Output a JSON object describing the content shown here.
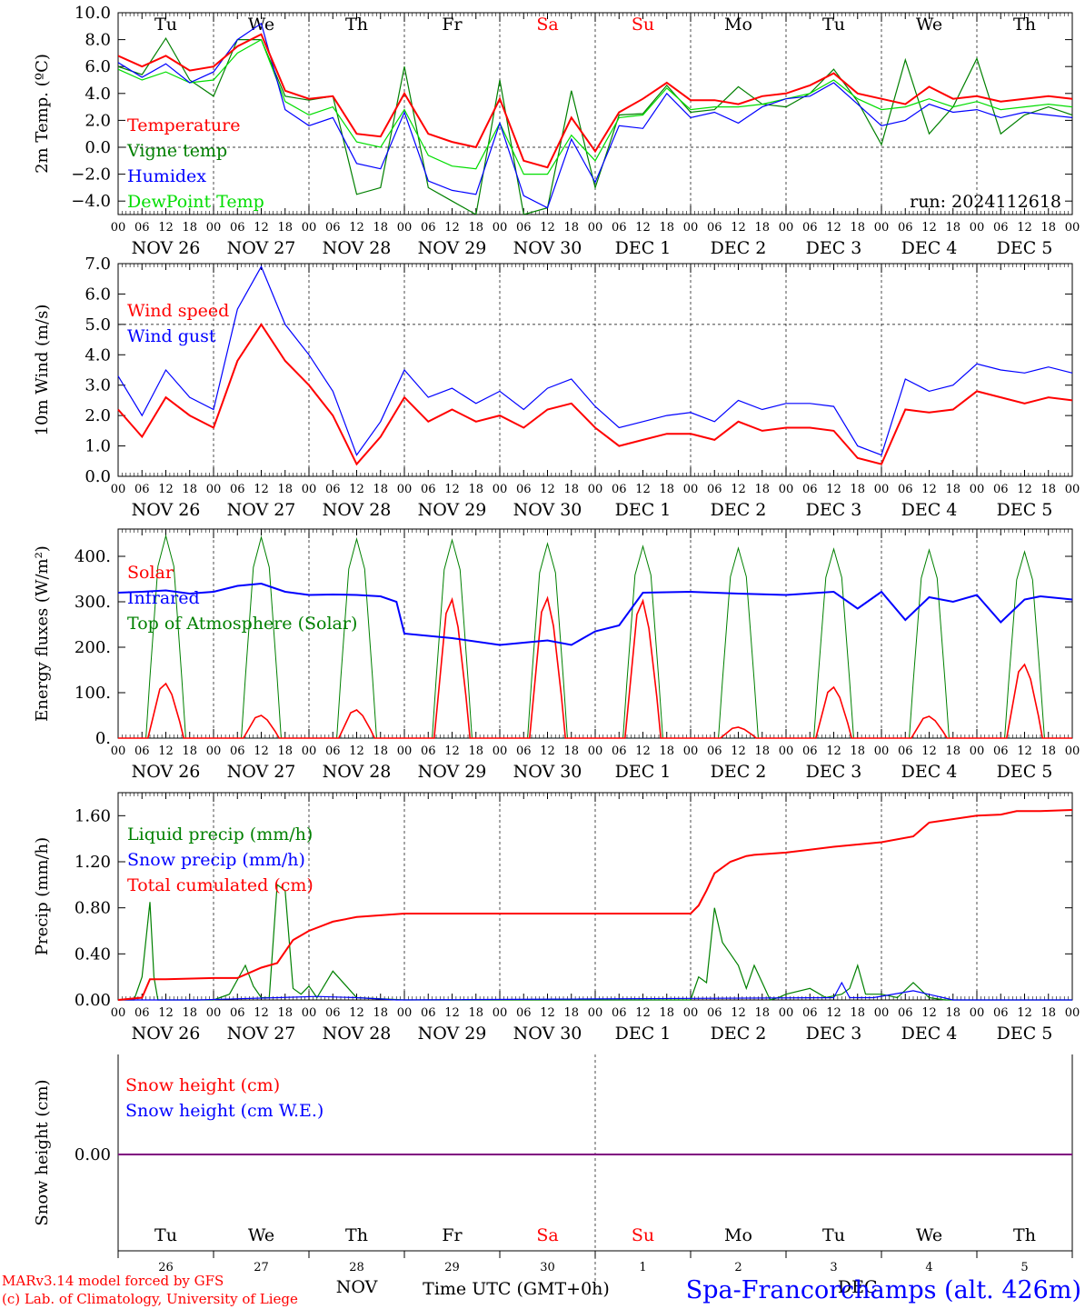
{
  "run_label": "run: 2024112618",
  "days": [
    "Tu",
    "We",
    "Th",
    "Fr",
    "Sa",
    "Su",
    "Mo",
    "Tu",
    "We",
    "Th"
  ],
  "weekend_days": [
    "Sa",
    "Su"
  ],
  "dates": [
    "NOV 26",
    "NOV 27",
    "NOV 28",
    "NOV 29",
    "NOV 30",
    "DEC 1",
    "DEC 2",
    "DEC 3",
    "DEC 4",
    "DEC 5"
  ],
  "day_numbers": [
    "26",
    "27",
    "28",
    "29",
    "30",
    "1",
    "2",
    "3",
    "4",
    "5"
  ],
  "hour_ticks": [
    "00",
    "06",
    "12",
    "18"
  ],
  "month_labels": [
    "NOV",
    "DEC"
  ],
  "footer": {
    "credit1": "MARv3.14 model forced by GFS",
    "credit2": "(c) Lab. of Climatology, University of Liege",
    "xlabel": "Time UTC (GMT+0h)",
    "location": "Spa-Francorchamps (alt. 426m)"
  },
  "colors": {
    "red": "#ff0000",
    "green": "#008000",
    "blue": "#0000ff",
    "lightgreen": "#00dd00",
    "purple": "#800080"
  },
  "chart_data": [
    {
      "type": "line",
      "ylabel": "2m Temp. (ºC)",
      "ylim": [
        -5,
        10
      ],
      "yticks": [
        "10.0",
        "8.0",
        "6.0",
        "4.0",
        "2.0",
        "0.0",
        "−2.0",
        "−4.0"
      ],
      "ytick_values": [
        10,
        8,
        6,
        4,
        2,
        0,
        -2,
        -4
      ],
      "dashed_y": 0,
      "x_hours": [
        0,
        6,
        12,
        18,
        24,
        30,
        36,
        42,
        48,
        54,
        60,
        66,
        72,
        78,
        84,
        90,
        96,
        102,
        108,
        114,
        120,
        126,
        132,
        138,
        144,
        150,
        156,
        162,
        168,
        174,
        180,
        186,
        192,
        198,
        204,
        210,
        216,
        222,
        228,
        234,
        240
      ],
      "series": [
        {
          "name": "Temperature",
          "color": "red",
          "values": [
            6.8,
            6.0,
            6.8,
            5.7,
            6.0,
            7.5,
            8.4,
            4.2,
            3.6,
            3.8,
            1.0,
            0.8,
            4.0,
            1.0,
            0.4,
            0.0,
            3.6,
            -1.0,
            -1.5,
            2.2,
            -0.3,
            2.6,
            3.6,
            4.8,
            3.5,
            3.5,
            3.2,
            3.8,
            4.0,
            4.6,
            5.5,
            4.0,
            3.6,
            3.2,
            4.5,
            3.6,
            3.8,
            3.4,
            3.6,
            3.8,
            3.6
          ]
        },
        {
          "name": "Vigne temp",
          "color": "green",
          "values": [
            6.0,
            5.4,
            8.1,
            5.0,
            3.8,
            8.0,
            8.0,
            3.8,
            3.5,
            3.8,
            -3.5,
            -3.0,
            6.0,
            -3.0,
            -4.0,
            -5.0,
            5.0,
            -5.0,
            -4.5,
            4.2,
            -3.0,
            2.4,
            2.5,
            4.6,
            2.6,
            2.8,
            4.5,
            3.2,
            3.0,
            4.0,
            5.8,
            3.4,
            0.2,
            6.5,
            1.0,
            3.0,
            6.6,
            1.0,
            2.4,
            3.0,
            2.4
          ]
        },
        {
          "name": "Humidex",
          "color": "blue",
          "values": [
            6.3,
            5.2,
            6.2,
            4.8,
            5.6,
            8.0,
            9.2,
            2.8,
            1.6,
            2.2,
            -1.2,
            -1.6,
            2.6,
            -2.5,
            -3.2,
            -3.5,
            1.8,
            -3.6,
            -4.5,
            0.6,
            -2.6,
            1.6,
            1.4,
            4.0,
            2.2,
            2.6,
            1.8,
            3.0,
            3.6,
            3.8,
            4.8,
            3.2,
            1.6,
            2.0,
            3.2,
            2.6,
            2.8,
            2.2,
            2.6,
            2.4,
            2.2
          ]
        },
        {
          "name": "DewPoint Temp",
          "color": "lightgreen",
          "values": [
            5.8,
            5.0,
            5.6,
            4.8,
            5.0,
            7.0,
            8.0,
            3.4,
            2.4,
            3.0,
            0.4,
            0.0,
            2.8,
            -0.6,
            -1.4,
            -1.6,
            1.8,
            -2.0,
            -2.0,
            0.9,
            -1.0,
            2.2,
            2.4,
            4.4,
            2.8,
            3.0,
            3.0,
            3.2,
            3.6,
            4.0,
            5.0,
            3.6,
            2.8,
            3.0,
            3.6,
            3.0,
            3.4,
            2.8,
            3.0,
            3.2,
            3.0
          ]
        }
      ]
    },
    {
      "type": "line",
      "ylabel": "10m Wind (m/s)",
      "ylim": [
        0,
        7
      ],
      "yticks": [
        "7.0",
        "6.0",
        "5.0",
        "4.0",
        "3.0",
        "2.0",
        "1.0",
        "0.0"
      ],
      "ytick_values": [
        7,
        6,
        5,
        4,
        3,
        2,
        1,
        0
      ],
      "dashed_y": 5,
      "x_hours": [
        0,
        6,
        12,
        18,
        24,
        30,
        36,
        42,
        48,
        54,
        60,
        66,
        72,
        78,
        84,
        90,
        96,
        102,
        108,
        114,
        120,
        126,
        132,
        138,
        144,
        150,
        156,
        162,
        168,
        174,
        180,
        186,
        192,
        198,
        204,
        210,
        216,
        222,
        228,
        234,
        240
      ],
      "series": [
        {
          "name": "Wind speed",
          "color": "red",
          "values": [
            2.2,
            1.3,
            2.6,
            2.0,
            1.6,
            3.8,
            5.0,
            3.8,
            3.0,
            2.0,
            0.4,
            1.3,
            2.6,
            1.8,
            2.2,
            1.8,
            2.0,
            1.6,
            2.2,
            2.4,
            1.6,
            1.0,
            1.2,
            1.4,
            1.4,
            1.2,
            1.8,
            1.5,
            1.6,
            1.6,
            1.5,
            0.6,
            0.4,
            2.2,
            2.1,
            2.2,
            2.8,
            2.6,
            2.4,
            2.6,
            2.5
          ]
        },
        {
          "name": "Wind gust",
          "color": "blue",
          "values": [
            3.3,
            2.0,
            3.5,
            2.6,
            2.2,
            5.5,
            6.9,
            5.0,
            4.0,
            2.8,
            0.7,
            1.8,
            3.5,
            2.6,
            2.9,
            2.4,
            2.8,
            2.2,
            2.9,
            3.2,
            2.3,
            1.6,
            1.8,
            2.0,
            2.1,
            1.8,
            2.5,
            2.2,
            2.4,
            2.4,
            2.3,
            1.0,
            0.7,
            3.2,
            2.8,
            3.0,
            3.7,
            3.5,
            3.4,
            3.6,
            3.4
          ]
        }
      ]
    },
    {
      "type": "line",
      "ylabel": "Energy fluxes (W/m²)",
      "ylim": [
        0,
        460
      ],
      "yticks": [
        "400.",
        "300.",
        "200.",
        "100.",
        "0."
      ],
      "ytick_values": [
        400,
        300,
        200,
        100,
        0
      ],
      "dashed_y": null,
      "infrared": {
        "x_hours": [
          0,
          6,
          12,
          18,
          24,
          30,
          36,
          42,
          48,
          54,
          60,
          66,
          70,
          72,
          84,
          96,
          108,
          114,
          120,
          126,
          132,
          144,
          156,
          168,
          180,
          186,
          192,
          198,
          204,
          210,
          216,
          222,
          228,
          232,
          240
        ],
        "values": [
          320,
          322,
          325,
          318,
          322,
          335,
          340,
          322,
          315,
          316,
          315,
          312,
          300,
          230,
          220,
          205,
          215,
          205,
          235,
          248,
          320,
          322,
          318,
          315,
          322,
          285,
          322,
          260,
          310,
          300,
          315,
          255,
          305,
          312,
          305
        ]
      },
      "daily_peaks": {
        "toa": [
          445,
          442,
          438,
          436,
          428,
          422,
          418,
          416,
          414,
          410
        ],
        "solar": [
          120,
          50,
          62,
          305,
          308,
          302,
          24,
          112,
          48,
          162
        ]
      },
      "series": [
        {
          "name": "Solar",
          "color": "red"
        },
        {
          "name": "Infrared",
          "color": "blue"
        },
        {
          "name": "Top of Atmosphere (Solar)",
          "color": "green"
        }
      ]
    },
    {
      "type": "line",
      "ylabel": "Precip (mm/h)",
      "ylim": [
        0,
        1.8
      ],
      "yticks": [
        "1.60",
        "1.20",
        "0.80",
        "0.40",
        "0.00"
      ],
      "ytick_values": [
        1.6,
        1.2,
        0.8,
        0.4,
        0
      ],
      "dashed_y": null,
      "series": [
        {
          "name": "Liquid precip (mm/h)",
          "color": "green",
          "x_hours": [
            0,
            4,
            6,
            8,
            9,
            10,
            12,
            20,
            24,
            28,
            32,
            34,
            36,
            38,
            40,
            42,
            44,
            46,
            48,
            50,
            54,
            60,
            72,
            96,
            120,
            144,
            146,
            148,
            150,
            152,
            154,
            156,
            158,
            160,
            162,
            164,
            166,
            168,
            174,
            178,
            182,
            184,
            186,
            188,
            190,
            192,
            196,
            200,
            204,
            208,
            216,
            240
          ],
          "values": [
            0,
            0,
            0.2,
            0.85,
            0.2,
            0,
            0,
            0,
            0,
            0.05,
            0.3,
            0.12,
            0.02,
            0.02,
            1.0,
            0.95,
            0.1,
            0.05,
            0.12,
            0.02,
            0.25,
            0.02,
            0,
            0,
            0,
            0,
            0.2,
            0.15,
            0.8,
            0.5,
            0.4,
            0.3,
            0.1,
            0.3,
            0.15,
            0,
            0.02,
            0.05,
            0.1,
            0.02,
            0.05,
            0.1,
            0.3,
            0.05,
            0.05,
            0.05,
            0.02,
            0.15,
            0.02,
            0,
            0,
            0
          ]
        },
        {
          "name": "Snow precip (mm/h)",
          "color": "blue",
          "x_hours": [
            0,
            20,
            40,
            50,
            60,
            70,
            180,
            182,
            184,
            190,
            200,
            210,
            240
          ],
          "values": [
            0,
            0,
            0.02,
            0.03,
            0.02,
            0,
            0.02,
            0.15,
            0.02,
            0.02,
            0.08,
            0,
            0
          ]
        },
        {
          "name": "Total cumulated (cm)",
          "color": "red",
          "x_hours": [
            0,
            6,
            8,
            12,
            24,
            30,
            36,
            40,
            44,
            48,
            54,
            60,
            72,
            96,
            120,
            144,
            146,
            148,
            150,
            154,
            158,
            160,
            168,
            180,
            192,
            200,
            204,
            208,
            216,
            222,
            226,
            232,
            240
          ],
          "values": [
            0,
            0.02,
            0.18,
            0.18,
            0.19,
            0.19,
            0.28,
            0.32,
            0.52,
            0.6,
            0.68,
            0.72,
            0.75,
            0.75,
            0.75,
            0.75,
            0.82,
            0.95,
            1.1,
            1.2,
            1.25,
            1.26,
            1.28,
            1.33,
            1.37,
            1.42,
            1.54,
            1.56,
            1.6,
            1.61,
            1.64,
            1.64,
            1.65
          ]
        }
      ]
    },
    {
      "type": "line",
      "ylabel": "Snow height (cm)",
      "yticks": [
        "0.00"
      ],
      "series": [
        {
          "name": "Snow height (cm)",
          "color": "red"
        },
        {
          "name": "Snow height (cm W.E.)",
          "color": "blue"
        }
      ]
    }
  ]
}
